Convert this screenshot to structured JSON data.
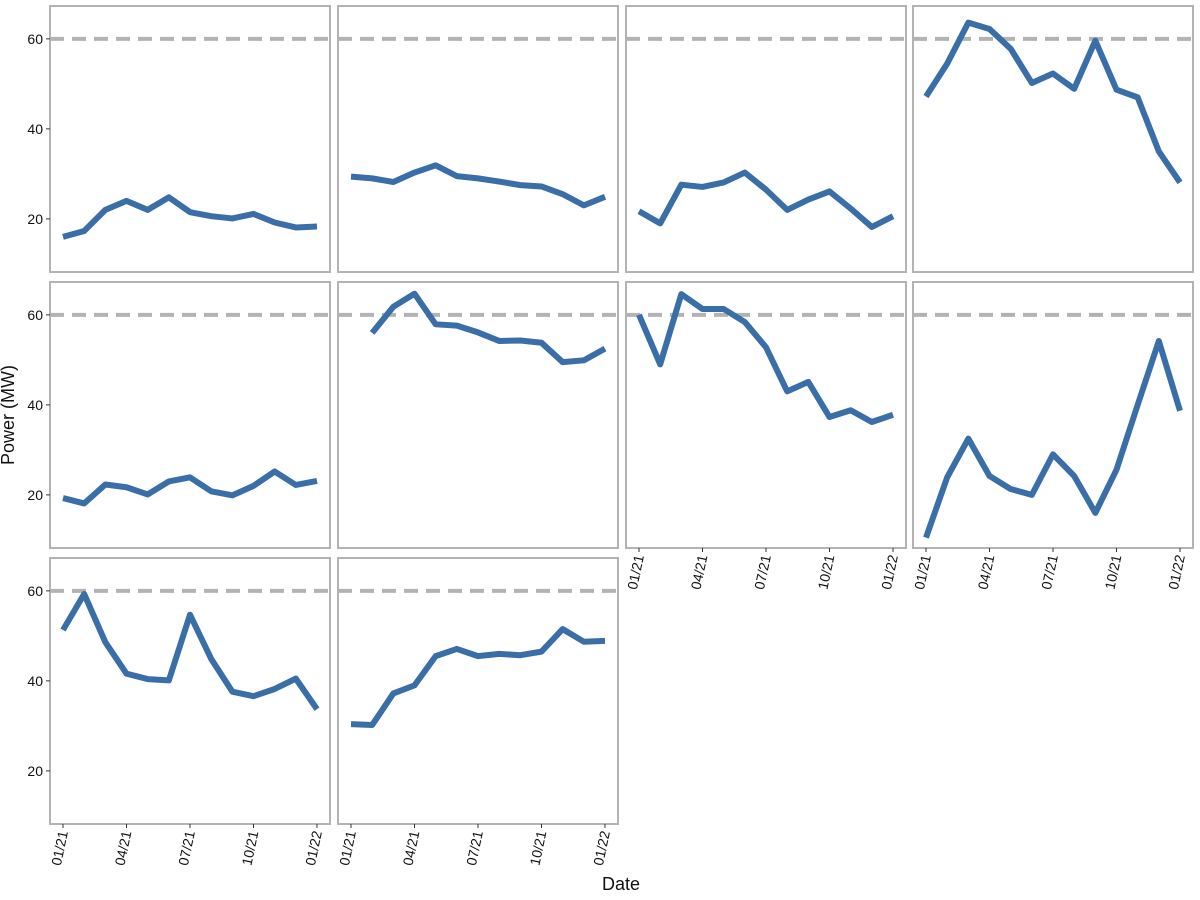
{
  "chart_data": {
    "type": "line",
    "xlabel": "Date",
    "ylabel": "Power (MW)",
    "ylim": [
      8.2,
      67.3
    ],
    "yticks": [
      20,
      40,
      60
    ],
    "hline": 60,
    "hline_color": "#b3b3b3",
    "color": "#3a6ea8",
    "x": [
      "2021-01",
      "2021-02",
      "2021-03",
      "2021-04",
      "2021-05",
      "2021-06",
      "2021-07",
      "2021-08",
      "2021-09",
      "2021-10",
      "2021-11",
      "2021-12",
      "2022-01"
    ],
    "xticks": [
      {
        "value": "2021-01",
        "label": "01/21"
      },
      {
        "value": "2021-04",
        "label": "04/21"
      },
      {
        "value": "2021-07",
        "label": "07/21"
      },
      {
        "value": "2021-10",
        "label": "10/21"
      },
      {
        "value": "2022-01",
        "label": "01/22"
      }
    ],
    "panels": [
      {
        "values": [
          16,
          17.3,
          22,
          24,
          22,
          24.8,
          21.5,
          20.6,
          20.1,
          21.1,
          19.2,
          18.1,
          18.3
        ]
      },
      {
        "values": [
          29.4,
          29,
          28.2,
          30.3,
          31.9,
          29.5,
          29,
          28.3,
          27.5,
          27.2,
          25.5,
          23,
          24.9
        ]
      },
      {
        "values": [
          21.7,
          19,
          27.6,
          27.1,
          28.1,
          30.3,
          26.5,
          22,
          24.3,
          26.1,
          22.3,
          18.2,
          20.6
        ]
      },
      {
        "values": [
          47.2,
          54.5,
          63.6,
          62.2,
          57.8,
          50.2,
          52.3,
          48.9,
          59.6,
          48.7,
          47,
          35,
          28.1
        ]
      },
      {
        "values": [
          19.3,
          18.1,
          22.3,
          21.7,
          20.1,
          23,
          23.9,
          20.8,
          19.9,
          22,
          25.2,
          22.2,
          23.1
        ]
      },
      {
        "values": [
          null,
          56,
          61.8,
          64.7,
          57.9,
          57.6,
          56.1,
          54.2,
          54.3,
          53.8,
          49.5,
          49.9,
          52.5
        ]
      },
      {
        "values": [
          60,
          49,
          64.6,
          61.3,
          61.3,
          58.4,
          52.8,
          43,
          45.1,
          37.3,
          38.8,
          36.2,
          37.8
        ]
      },
      {
        "values": [
          10.5,
          23.9,
          32.5,
          24.2,
          21.3,
          20,
          29,
          24.2,
          16,
          25.6,
          40,
          54.2,
          38.7
        ]
      },
      {
        "values": [
          51.3,
          59.3,
          48.6,
          41.6,
          40.4,
          40.1,
          54.7,
          44.9,
          37.6,
          36.6,
          38.2,
          40.5,
          33.7
        ]
      },
      {
        "values": [
          30.4,
          30.2,
          37.2,
          39,
          45.5,
          47.1,
          45.5,
          46,
          45.7,
          46.5,
          51.5,
          48.7,
          48.9
        ]
      }
    ]
  }
}
